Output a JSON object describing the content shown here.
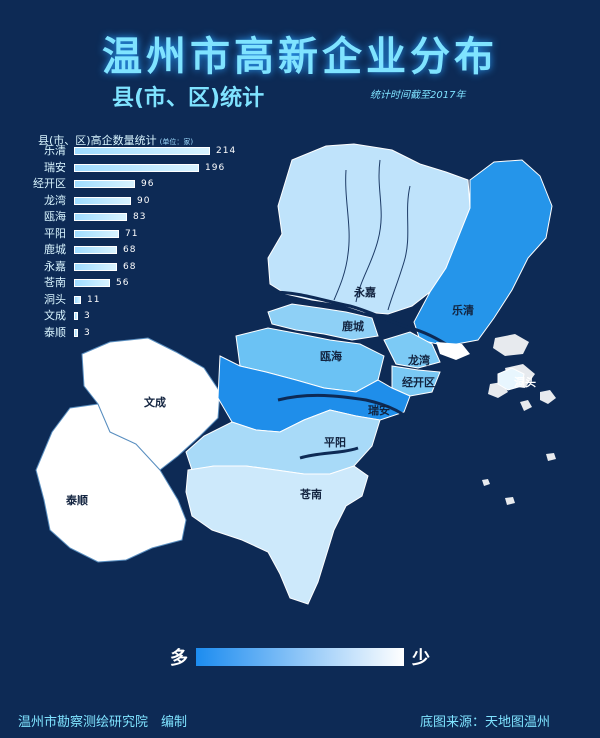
{
  "title": "温州市高新企业分布",
  "subtitle": "县(市、区)统计",
  "note": "统计时间截至2017年",
  "stats": {
    "header": "县(市、区)高企数量统计",
    "unit": "(单位：家)",
    "rows": [
      {
        "name": "乐清",
        "value": 214
      },
      {
        "name": "瑞安",
        "value": 196
      },
      {
        "name": "经开区",
        "value": 96
      },
      {
        "name": "龙湾",
        "value": 90
      },
      {
        "name": "瓯海",
        "value": 83
      },
      {
        "name": "平阳",
        "value": 71
      },
      {
        "name": "鹿城",
        "value": 68
      },
      {
        "name": "永嘉",
        "value": 68
      },
      {
        "name": "苍南",
        "value": 56
      },
      {
        "name": "洞头",
        "value": 11
      },
      {
        "name": "文成",
        "value": 3
      },
      {
        "name": "泰顺",
        "value": 3
      }
    ]
  },
  "map_labels": {
    "leqing": "乐清",
    "ruian": "瑞安",
    "jingkaiqu": "经开区",
    "longwan": "龙湾",
    "ouhai": "瓯海",
    "pingyang": "平阳",
    "lucheng": "鹿城",
    "yongjia": "永嘉",
    "cangnan": "苍南",
    "dongtou": "洞头",
    "wencheng": "文成",
    "taishun": "泰顺"
  },
  "legend": {
    "more": "多",
    "less": "少"
  },
  "footer": {
    "left": "温州市勘察测绘研究院　编制",
    "right": "底图来源：天地图温州"
  },
  "colors": {
    "background": "#0d2a55",
    "title": "#7fe3ff",
    "scale_high": "#1c8cf0",
    "scale_low": "#ffffff"
  }
}
